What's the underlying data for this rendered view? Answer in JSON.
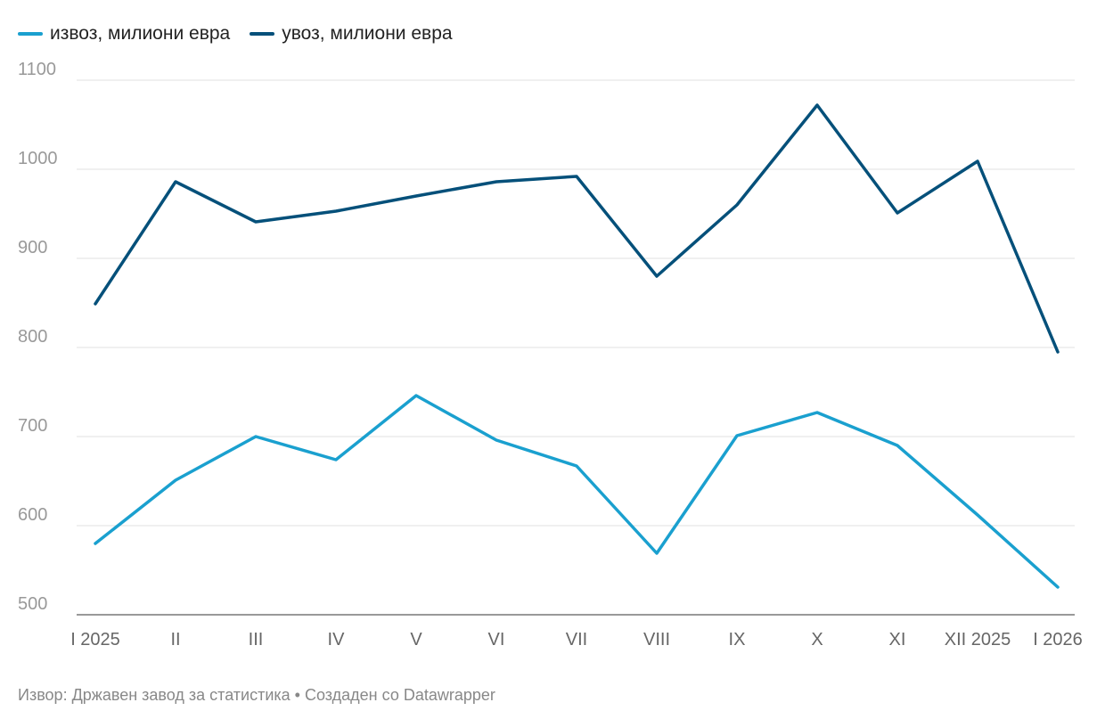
{
  "chart_data": {
    "type": "line",
    "title": "",
    "xlabel": "",
    "ylabel": "",
    "categories": [
      "I 2025",
      "II",
      "III",
      "IV",
      "V",
      "VI",
      "VII",
      "VIII",
      "IX",
      "X",
      "XI",
      "XII 2025",
      "I 2026"
    ],
    "ylim": [
      500,
      1100
    ],
    "yticks": [
      500,
      600,
      700,
      800,
      900,
      1000,
      1100
    ],
    "grid": true,
    "legend_position": "top-left",
    "series": [
      {
        "name": "извоз, милиони евра",
        "color": "#1aa0cf",
        "values": [
          580,
          651,
          700,
          674,
          746,
          696,
          667,
          569,
          701,
          727,
          690,
          612,
          531
        ]
      },
      {
        "name": "увоз, милиони евра",
        "color": "#05507a",
        "values": [
          849,
          986,
          941,
          953,
          970,
          986,
          992,
          880,
          960,
          1072,
          951,
          1009,
          795
        ]
      }
    ]
  },
  "footer": {
    "text": "Извор: Државен завод за статистика • Создаден со Datawrapper"
  }
}
